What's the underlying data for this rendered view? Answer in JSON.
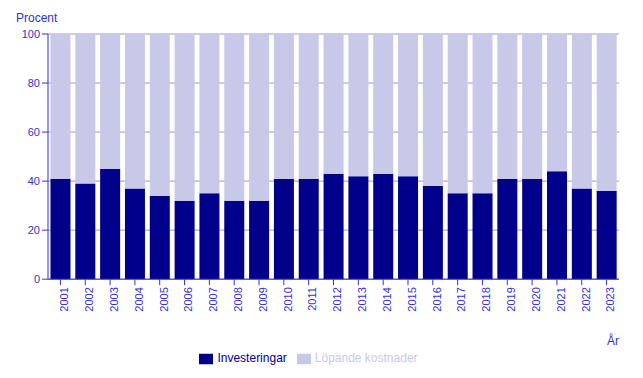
{
  "chart_data": {
    "type": "bar",
    "stacked": true,
    "categories": [
      "2001",
      "2002",
      "2003",
      "2004",
      "2005",
      "2006",
      "2007",
      "2008",
      "2009",
      "2010",
      "2011",
      "2012",
      "2013",
      "2014",
      "2015",
      "2016",
      "2017",
      "2018",
      "2019",
      "2020",
      "2021",
      "2022",
      "2023"
    ],
    "series": [
      {
        "name": "Investeringar",
        "color": "#00008B",
        "values": [
          41,
          39,
          45,
          37,
          34,
          32,
          35,
          32,
          32,
          41,
          41,
          43,
          42,
          43,
          42,
          38,
          35,
          35,
          41,
          41,
          44,
          37,
          36
        ]
      },
      {
        "name": "Löpande kostnader",
        "color": "#C8C8E8",
        "values": [
          59,
          61,
          55,
          63,
          66,
          68,
          65,
          68,
          68,
          59,
          59,
          57,
          58,
          57,
          58,
          62,
          65,
          65,
          59,
          59,
          56,
          63,
          64
        ]
      }
    ],
    "ylim": [
      0,
      100
    ],
    "yticks": [
      0,
      20,
      40,
      60,
      80,
      100
    ],
    "ylabel": "Procent",
    "xlabel": "År",
    "grid": true,
    "legend": "bottom"
  }
}
